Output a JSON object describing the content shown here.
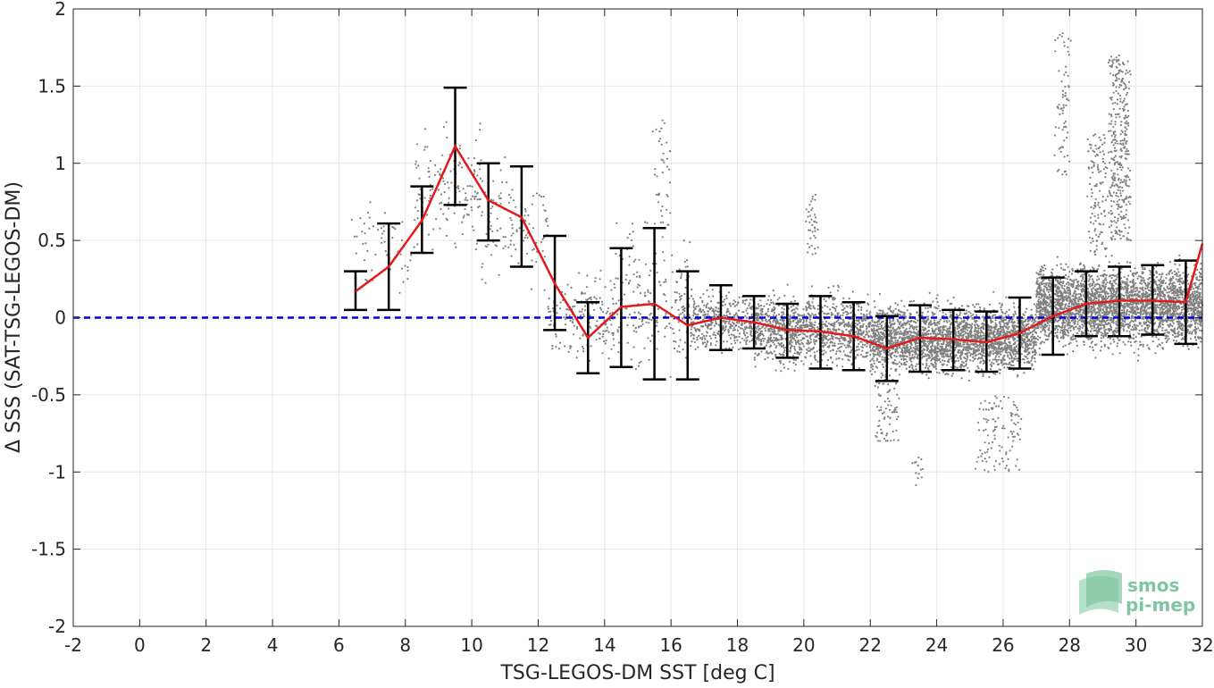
{
  "chart_data": {
    "type": "scatter",
    "xlabel": "TSG-LEGOS-DM SST [deg C]",
    "ylabel": "Δ SSS (SAT-TSG-LEGOS-DM)",
    "xlim": [
      -2,
      32
    ],
    "ylim": [
      -2,
      2
    ],
    "x_ticks": [
      -2,
      0,
      2,
      4,
      6,
      8,
      10,
      12,
      14,
      16,
      18,
      20,
      22,
      24,
      26,
      28,
      30,
      32
    ],
    "y_ticks": [
      -2,
      -1.5,
      -1,
      -0.5,
      0,
      0.5,
      1,
      1.5,
      2
    ],
    "grid": true,
    "reference_line_y": 0,
    "colors": {
      "scatter": "#808080",
      "mean_line": "#e31a1c",
      "error_bars": "#000000",
      "reference_line": "#0000dd"
    },
    "binned_stats": {
      "x": [
        6.5,
        7.5,
        8.5,
        9.5,
        10.5,
        11.5,
        12.5,
        13.5,
        14.5,
        15.5,
        16.5,
        17.5,
        18.5,
        19.5,
        20.5,
        21.5,
        22.5,
        23.5,
        24.5,
        25.5,
        26.5,
        27.5,
        28.5,
        29.5,
        30.5,
        31.5
      ],
      "mean": [
        0.17,
        0.33,
        0.63,
        1.11,
        0.76,
        0.65,
        0.22,
        -0.13,
        0.07,
        0.09,
        -0.05,
        0.0,
        -0.03,
        -0.08,
        -0.09,
        -0.12,
        -0.2,
        -0.13,
        -0.14,
        -0.16,
        -0.1,
        0.01,
        0.09,
        0.11,
        0.11,
        0.1
      ],
      "upper": [
        0.3,
        0.61,
        0.85,
        1.49,
        1.0,
        0.98,
        0.53,
        0.1,
        0.45,
        0.58,
        0.3,
        0.21,
        0.14,
        0.09,
        0.14,
        0.1,
        0.01,
        0.08,
        0.05,
        0.04,
        0.13,
        0.26,
        0.3,
        0.33,
        0.34,
        0.37
      ],
      "lower": [
        0.05,
        0.05,
        0.42,
        0.73,
        0.5,
        0.33,
        -0.08,
        -0.36,
        -0.32,
        -0.4,
        -0.4,
        -0.21,
        -0.2,
        -0.26,
        -0.33,
        -0.34,
        -0.41,
        -0.35,
        -0.34,
        -0.35,
        -0.33,
        -0.24,
        -0.12,
        -0.12,
        -0.11,
        -0.17
      ]
    },
    "mean_line_end": {
      "x": 32,
      "y": 0.48
    },
    "scatter_clusters": [
      {
        "x": [
          6.3,
          8.3
        ],
        "y_center": 0.45,
        "y_spread": 0.22,
        "count": 60
      },
      {
        "x": [
          8.3,
          10.3
        ],
        "y_center": 0.85,
        "y_spread": 0.3,
        "count": 150
      },
      {
        "x": [
          10.3,
          12.3
        ],
        "y_center": 0.6,
        "y_spread": 0.28,
        "count": 120
      },
      {
        "x": [
          12.3,
          14.3
        ],
        "y_center": 0.0,
        "y_spread": 0.22,
        "count": 180
      },
      {
        "x": [
          14.3,
          16.6
        ],
        "y_center": 0.1,
        "y_spread": 0.35,
        "count": 220
      },
      {
        "x": [
          16.6,
          18.5
        ],
        "y_center": -0.02,
        "y_spread": 0.15,
        "count": 400
      },
      {
        "x": [
          18.5,
          22
        ],
        "y_center": -0.08,
        "y_spread": 0.17,
        "count": 1200
      },
      {
        "x": [
          22,
          27
        ],
        "y_center": -0.14,
        "y_spread": 0.17,
        "count": 2600
      },
      {
        "x": [
          27,
          32
        ],
        "y_center": 0.08,
        "y_spread": 0.2,
        "count": 3400
      }
    ],
    "scatter_streaks": [
      {
        "x": [
          29.2,
          29.8
        ],
        "y": [
          0.5,
          1.7
        ],
        "count": 350
      },
      {
        "x": [
          28.6,
          29.1
        ],
        "y": [
          0.4,
          1.2
        ],
        "count": 120
      },
      {
        "x": [
          27.6,
          28.0
        ],
        "y": [
          0.9,
          1.85
        ],
        "count": 70
      },
      {
        "x": [
          15.5,
          16.0
        ],
        "y": [
          0.6,
          1.3
        ],
        "count": 40
      },
      {
        "x": [
          20.1,
          20.4
        ],
        "y": [
          0.4,
          0.8
        ],
        "count": 40
      },
      {
        "x": [
          22.2,
          22.8
        ],
        "y": [
          -0.8,
          -0.4
        ],
        "count": 80
      },
      {
        "x": [
          25.2,
          26.5
        ],
        "y": [
          -1.0,
          -0.5
        ],
        "count": 110
      },
      {
        "x": [
          23.3,
          23.6
        ],
        "y": [
          -1.1,
          -0.9
        ],
        "count": 15
      }
    ],
    "logo": {
      "line1": "smos",
      "line2": "pi-mep"
    }
  }
}
